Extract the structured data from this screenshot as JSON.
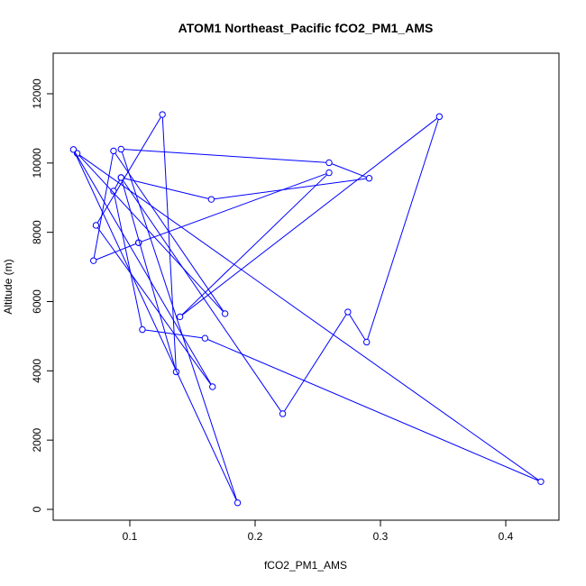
{
  "chart_data": {
    "type": "scatter",
    "title": "ATOM1 Northeast_Pacific fCO2_PM1_AMS",
    "xlabel": "fCO2_PM1_AMS",
    "ylabel": "Altitude (m)",
    "xlim": [
      0.05,
      0.43
    ],
    "ylim": [
      0,
      12000
    ],
    "x_ticks": [
      0.1,
      0.2,
      0.3,
      0.4
    ],
    "x_tick_labels": [
      "0.1",
      "0.2",
      "0.3",
      "0.4"
    ],
    "y_ticks": [
      0,
      2000,
      4000,
      6000,
      8000,
      10000,
      12000
    ],
    "y_tick_labels": [
      "0",
      "2000",
      "4000",
      "6000",
      "8000",
      "10000",
      "12000"
    ],
    "grid": false,
    "legend": "none",
    "series_color": "#0000ff",
    "line_connected": true,
    "marker": "open-circle",
    "series": [
      {
        "points": [
          {
            "x": 0.107,
            "y": 7700
          },
          {
            "x": 0.259,
            "y": 9720
          },
          {
            "x": 0.14,
            "y": 5560
          },
          {
            "x": 0.347,
            "y": 11340
          },
          {
            "x": 0.289,
            "y": 4830
          },
          {
            "x": 0.274,
            "y": 5700
          },
          {
            "x": 0.222,
            "y": 2760
          },
          {
            "x": 0.093,
            "y": 9580
          },
          {
            "x": 0.137,
            "y": 3970
          },
          {
            "x": 0.126,
            "y": 11400
          },
          {
            "x": 0.073,
            "y": 8200
          },
          {
            "x": 0.166,
            "y": 3540
          },
          {
            "x": 0.055,
            "y": 10390
          },
          {
            "x": 0.186,
            "y": 190
          },
          {
            "x": 0.093,
            "y": 10400
          },
          {
            "x": 0.259,
            "y": 10010
          },
          {
            "x": 0.291,
            "y": 9560
          },
          {
            "x": 0.165,
            "y": 8950
          },
          {
            "x": 0.093,
            "y": 9580
          },
          {
            "x": 0.087,
            "y": 9190
          },
          {
            "x": 0.11,
            "y": 5190
          },
          {
            "x": 0.16,
            "y": 4940
          },
          {
            "x": 0.428,
            "y": 800
          },
          {
            "x": 0.058,
            "y": 10280
          },
          {
            "x": 0.176,
            "y": 5650
          },
          {
            "x": 0.087,
            "y": 10350
          },
          {
            "x": 0.071,
            "y": 7180
          },
          {
            "x": 0.107,
            "y": 7700
          }
        ]
      }
    ]
  }
}
